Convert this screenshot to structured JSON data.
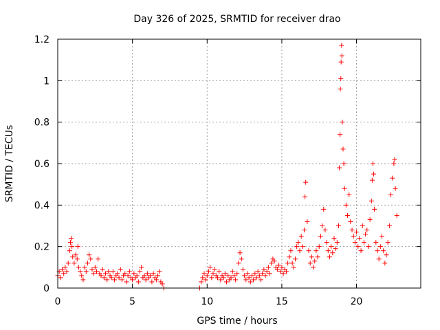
{
  "chart_data": {
    "type": "scatter",
    "title": "Day 326 of 2025, SRMTID for receiver drao",
    "xlabel": "GPS time / hours",
    "ylabel": "SRMTID / TECUs",
    "xlim": [
      0,
      24.3
    ],
    "ylim": [
      0,
      1.2
    ],
    "x_ticks": [
      0,
      5,
      10,
      15,
      20
    ],
    "x_tick_labels": [
      "0",
      "5",
      "10",
      "15",
      "20"
    ],
    "y_ticks": [
      0,
      0.2,
      0.4,
      0.6,
      0.8,
      1.0,
      1.2
    ],
    "y_tick_labels": [
      "0",
      "0.2",
      "0.4",
      "0.6",
      "0.8",
      "1",
      "1.2"
    ],
    "grid": true,
    "marker": "+",
    "series": [
      {
        "name": "SRMTID",
        "color": "#ff0000",
        "segments": [
          {
            "x_start": 0.0,
            "x_end": 7.1,
            "description": "quiet period, values mostly 0.02–0.12 with a bump near 0.9 h"
          },
          {
            "x_start": 9.5,
            "x_end": 22.7,
            "description": "increasing activity with spikes after 15 h"
          }
        ],
        "points": [
          [
            0.0,
            0.06
          ],
          [
            0.1,
            0.08
          ],
          [
            0.2,
            0.05
          ],
          [
            0.3,
            0.09
          ],
          [
            0.4,
            0.07
          ],
          [
            0.5,
            0.1
          ],
          [
            0.6,
            0.08
          ],
          [
            0.7,
            0.12
          ],
          [
            0.8,
            0.18
          ],
          [
            0.85,
            0.22
          ],
          [
            0.9,
            0.24
          ],
          [
            0.95,
            0.2
          ],
          [
            1.0,
            0.15
          ],
          [
            1.1,
            0.12
          ],
          [
            1.2,
            0.16
          ],
          [
            1.3,
            0.14
          ],
          [
            1.35,
            0.2
          ],
          [
            1.4,
            0.1
          ],
          [
            1.5,
            0.08
          ],
          [
            1.6,
            0.06
          ],
          [
            1.7,
            0.04
          ],
          [
            1.8,
            0.1
          ],
          [
            1.9,
            0.08
          ],
          [
            2.0,
            0.12
          ],
          [
            2.1,
            0.16
          ],
          [
            2.2,
            0.14
          ],
          [
            2.3,
            0.09
          ],
          [
            2.4,
            0.07
          ],
          [
            2.5,
            0.1
          ],
          [
            2.6,
            0.08
          ],
          [
            2.7,
            0.14
          ],
          [
            2.8,
            0.07
          ],
          [
            2.9,
            0.06
          ],
          [
            3.0,
            0.09
          ],
          [
            3.1,
            0.05
          ],
          [
            3.2,
            0.07
          ],
          [
            3.3,
            0.04
          ],
          [
            3.4,
            0.08
          ],
          [
            3.5,
            0.06
          ],
          [
            3.6,
            0.05
          ],
          [
            3.7,
            0.08
          ],
          [
            3.8,
            0.04
          ],
          [
            3.9,
            0.06
          ],
          [
            4.0,
            0.07
          ],
          [
            4.1,
            0.05
          ],
          [
            4.2,
            0.09
          ],
          [
            4.3,
            0.04
          ],
          [
            4.4,
            0.06
          ],
          [
            4.5,
            0.07
          ],
          [
            4.6,
            0.03
          ],
          [
            4.7,
            0.06
          ],
          [
            4.8,
            0.08
          ],
          [
            4.9,
            0.05
          ],
          [
            5.0,
            0.04
          ],
          [
            5.1,
            0.07
          ],
          [
            5.2,
            0.05
          ],
          [
            5.3,
            0.06
          ],
          [
            5.4,
            0.03
          ],
          [
            5.5,
            0.08
          ],
          [
            5.6,
            0.1
          ],
          [
            5.7,
            0.05
          ],
          [
            5.8,
            0.06
          ],
          [
            5.9,
            0.04
          ],
          [
            6.0,
            0.07
          ],
          [
            6.1,
            0.05
          ],
          [
            6.2,
            0.06
          ],
          [
            6.3,
            0.03
          ],
          [
            6.4,
            0.07
          ],
          [
            6.5,
            0.05
          ],
          [
            6.6,
            0.04
          ],
          [
            6.7,
            0.06
          ],
          [
            6.8,
            0.08
          ],
          [
            6.9,
            0.03
          ],
          [
            7.0,
            0.02
          ],
          [
            7.1,
            0.0
          ],
          [
            9.5,
            0.0
          ],
          [
            9.6,
            0.03
          ],
          [
            9.7,
            0.05
          ],
          [
            9.8,
            0.07
          ],
          [
            9.9,
            0.04
          ],
          [
            10.0,
            0.06
          ],
          [
            10.1,
            0.08
          ],
          [
            10.2,
            0.1
          ],
          [
            10.3,
            0.05
          ],
          [
            10.4,
            0.07
          ],
          [
            10.5,
            0.09
          ],
          [
            10.6,
            0.06
          ],
          [
            10.7,
            0.05
          ],
          [
            10.8,
            0.08
          ],
          [
            10.9,
            0.04
          ],
          [
            11.0,
            0.06
          ],
          [
            11.1,
            0.05
          ],
          [
            11.2,
            0.07
          ],
          [
            11.3,
            0.03
          ],
          [
            11.4,
            0.06
          ],
          [
            11.5,
            0.04
          ],
          [
            11.6,
            0.05
          ],
          [
            11.7,
            0.08
          ],
          [
            11.8,
            0.06
          ],
          [
            11.9,
            0.04
          ],
          [
            12.0,
            0.07
          ],
          [
            12.1,
            0.12
          ],
          [
            12.2,
            0.17
          ],
          [
            12.3,
            0.14
          ],
          [
            12.4,
            0.09
          ],
          [
            12.5,
            0.06
          ],
          [
            12.6,
            0.04
          ],
          [
            12.7,
            0.07
          ],
          [
            12.8,
            0.05
          ],
          [
            12.9,
            0.03
          ],
          [
            13.0,
            0.06
          ],
          [
            13.1,
            0.04
          ],
          [
            13.2,
            0.07
          ],
          [
            13.3,
            0.05
          ],
          [
            13.4,
            0.08
          ],
          [
            13.5,
            0.06
          ],
          [
            13.6,
            0.04
          ],
          [
            13.7,
            0.07
          ],
          [
            13.8,
            0.09
          ],
          [
            13.9,
            0.06
          ],
          [
            14.0,
            0.08
          ],
          [
            14.1,
            0.1
          ],
          [
            14.2,
            0.07
          ],
          [
            14.3,
            0.12
          ],
          [
            14.4,
            0.14
          ],
          [
            14.5,
            0.13
          ],
          [
            14.6,
            0.1
          ],
          [
            14.7,
            0.09
          ],
          [
            14.8,
            0.11
          ],
          [
            14.9,
            0.08
          ],
          [
            15.0,
            0.1
          ],
          [
            15.1,
            0.07
          ],
          [
            15.2,
            0.09
          ],
          [
            15.3,
            0.08
          ],
          [
            15.4,
            0.12
          ],
          [
            15.5,
            0.15
          ],
          [
            15.6,
            0.18
          ],
          [
            15.7,
            0.12
          ],
          [
            15.8,
            0.1
          ],
          [
            15.9,
            0.14
          ],
          [
            16.0,
            0.2
          ],
          [
            16.1,
            0.22
          ],
          [
            16.2,
            0.18
          ],
          [
            16.3,
            0.25
          ],
          [
            16.4,
            0.2
          ],
          [
            16.5,
            0.28
          ],
          [
            16.55,
            0.44
          ],
          [
            16.6,
            0.51
          ],
          [
            16.7,
            0.32
          ],
          [
            16.8,
            0.18
          ],
          [
            16.9,
            0.12
          ],
          [
            17.0,
            0.15
          ],
          [
            17.1,
            0.1
          ],
          [
            17.2,
            0.13
          ],
          [
            17.3,
            0.18
          ],
          [
            17.4,
            0.15
          ],
          [
            17.5,
            0.2
          ],
          [
            17.6,
            0.25
          ],
          [
            17.7,
            0.3
          ],
          [
            17.8,
            0.38
          ],
          [
            17.9,
            0.28
          ],
          [
            18.0,
            0.22
          ],
          [
            18.1,
            0.18
          ],
          [
            18.2,
            0.15
          ],
          [
            18.3,
            0.2
          ],
          [
            18.4,
            0.17
          ],
          [
            18.5,
            0.24
          ],
          [
            18.6,
            0.19
          ],
          [
            18.7,
            0.22
          ],
          [
            18.8,
            0.3
          ],
          [
            18.85,
            0.58
          ],
          [
            18.9,
            0.74
          ],
          [
            18.92,
            0.96
          ],
          [
            18.95,
            1.01
          ],
          [
            18.97,
            1.09
          ],
          [
            19.0,
            1.17
          ],
          [
            19.02,
            1.12
          ],
          [
            19.05,
            0.8
          ],
          [
            19.1,
            0.67
          ],
          [
            19.15,
            0.6
          ],
          [
            19.2,
            0.48
          ],
          [
            19.3,
            0.4
          ],
          [
            19.4,
            0.35
          ],
          [
            19.5,
            0.45
          ],
          [
            19.6,
            0.32
          ],
          [
            19.7,
            0.28
          ],
          [
            19.8,
            0.25
          ],
          [
            19.9,
            0.22
          ],
          [
            20.0,
            0.27
          ],
          [
            20.1,
            0.2
          ],
          [
            20.2,
            0.24
          ],
          [
            20.3,
            0.18
          ],
          [
            20.4,
            0.3
          ],
          [
            20.5,
            0.22
          ],
          [
            20.6,
            0.26
          ],
          [
            20.7,
            0.28
          ],
          [
            20.8,
            0.2
          ],
          [
            20.9,
            0.33
          ],
          [
            21.0,
            0.42
          ],
          [
            21.05,
            0.52
          ],
          [
            21.1,
            0.6
          ],
          [
            21.15,
            0.55
          ],
          [
            21.2,
            0.38
          ],
          [
            21.3,
            0.22
          ],
          [
            21.4,
            0.18
          ],
          [
            21.5,
            0.14
          ],
          [
            21.6,
            0.2
          ],
          [
            21.7,
            0.25
          ],
          [
            21.8,
            0.18
          ],
          [
            21.9,
            0.12
          ],
          [
            22.0,
            0.16
          ],
          [
            22.1,
            0.22
          ],
          [
            22.2,
            0.3
          ],
          [
            22.3,
            0.45
          ],
          [
            22.4,
            0.53
          ],
          [
            22.5,
            0.6
          ],
          [
            22.55,
            0.62
          ],
          [
            22.6,
            0.48
          ],
          [
            22.7,
            0.35
          ]
        ]
      }
    ]
  }
}
